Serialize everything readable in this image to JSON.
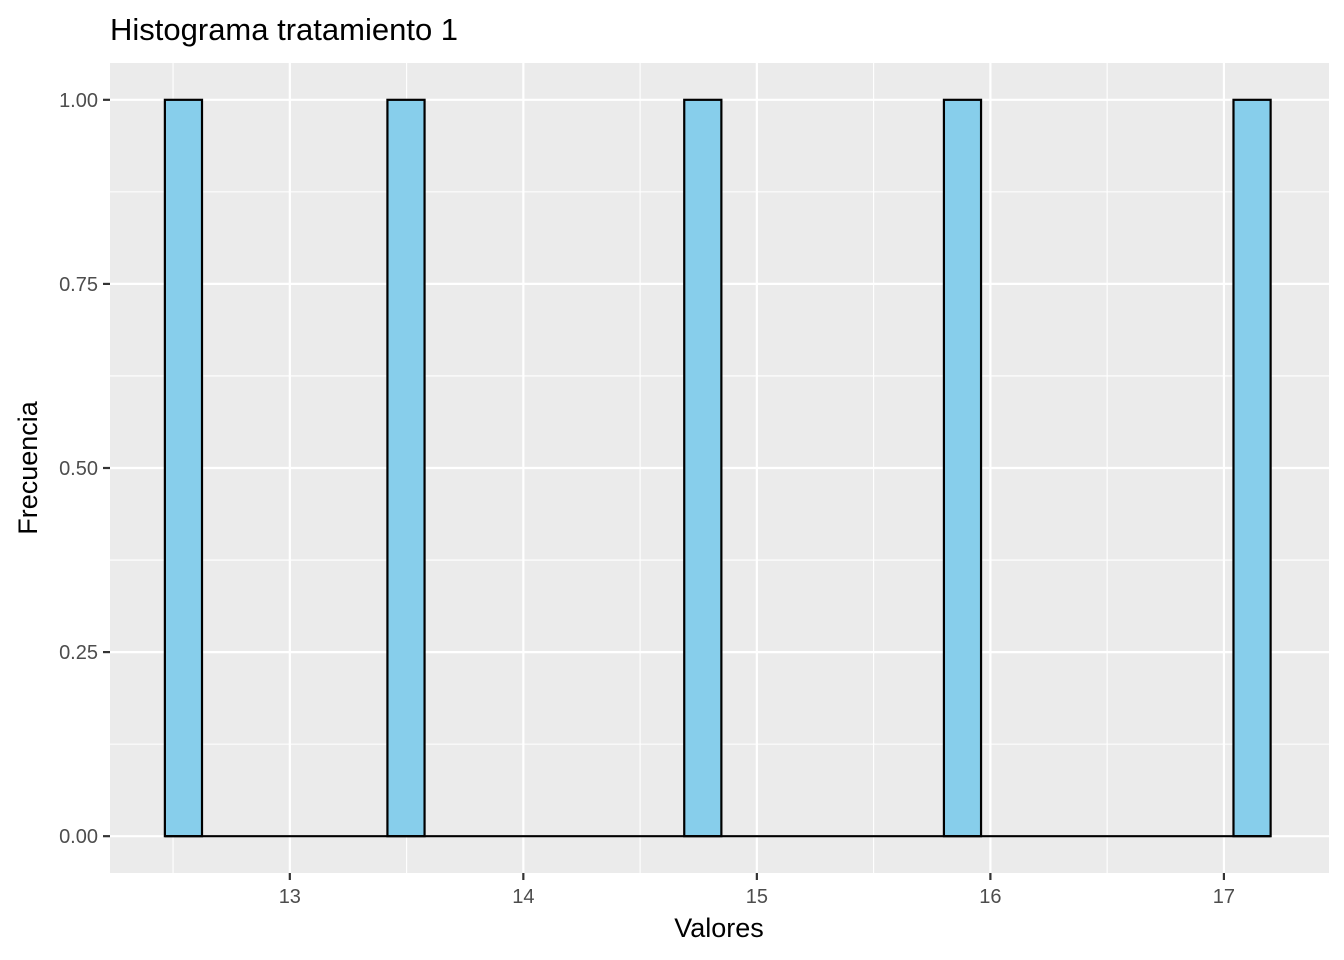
{
  "chart_data": {
    "type": "bar",
    "title": "Histograma tratamiento 1",
    "xlabel": "Valores",
    "ylabel": "Frecuencia",
    "xlim": [
      12.23,
      17.45
    ],
    "ylim": [
      -0.05,
      1.05
    ],
    "x_ticks": [
      13,
      14,
      15,
      16,
      17
    ],
    "x_tick_labels": [
      "13",
      "14",
      "15",
      "16",
      "17"
    ],
    "y_ticks": [
      0,
      0.25,
      0.5,
      0.75,
      1.0
    ],
    "y_tick_labels": [
      "0.00",
      "0.25",
      "0.50",
      "0.75",
      "1.00"
    ],
    "bin_width": 0.159,
    "bins_start": 12.465,
    "bins_end": 17.2,
    "bars": [
      {
        "x_start": 12.465,
        "x_end": 12.624,
        "count": 1
      },
      {
        "x_start": 13.418,
        "x_end": 13.577,
        "count": 1
      },
      {
        "x_start": 14.689,
        "x_end": 14.848,
        "count": 1
      },
      {
        "x_start": 15.801,
        "x_end": 15.96,
        "count": 1
      },
      {
        "x_start": 17.041,
        "x_end": 17.2,
        "count": 1
      }
    ],
    "grid": true,
    "colors": {
      "panel": "#ebebeb",
      "grid_major": "#ffffff",
      "bar_fill": "#87ceeb",
      "bar_outline": "#000000"
    }
  }
}
